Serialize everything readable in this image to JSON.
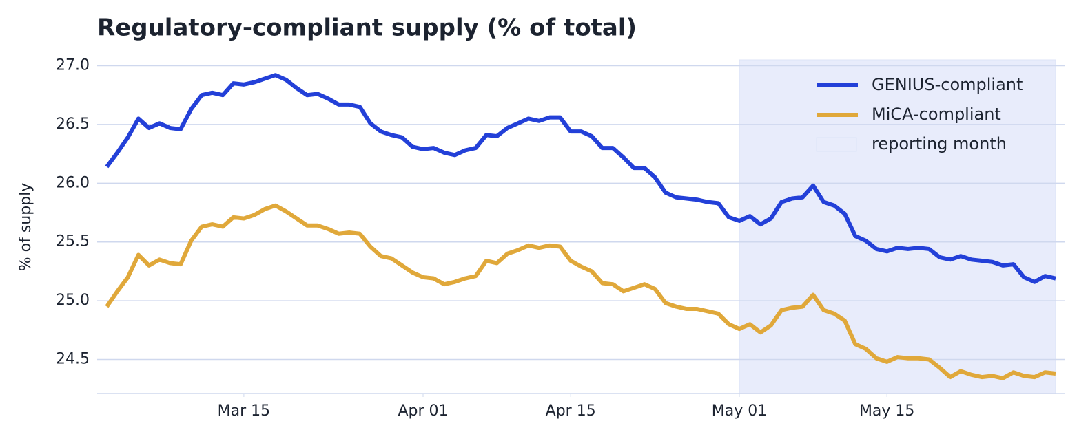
{
  "chart_data": {
    "type": "line",
    "title": "Regulatory-compliant supply (% of total)",
    "y_label": "% of supply",
    "x": [
      "Mar 02",
      "Mar 03",
      "Mar 04",
      "Mar 05",
      "Mar 06",
      "Mar 07",
      "Mar 08",
      "Mar 09",
      "Mar 10",
      "Mar 11",
      "Mar 12",
      "Mar 13",
      "Mar 14",
      "Mar 15",
      "Mar 16",
      "Mar 17",
      "Mar 18",
      "Mar 19",
      "Mar 20",
      "Mar 21",
      "Mar 22",
      "Mar 23",
      "Mar 24",
      "Mar 25",
      "Mar 26",
      "Mar 27",
      "Mar 28",
      "Mar 29",
      "Mar 30",
      "Mar 31",
      "Apr 01",
      "Apr 02",
      "Apr 03",
      "Apr 04",
      "Apr 05",
      "Apr 06",
      "Apr 07",
      "Apr 08",
      "Apr 09",
      "Apr 10",
      "Apr 11",
      "Apr 12",
      "Apr 13",
      "Apr 14",
      "Apr 15",
      "Apr 16",
      "Apr 17",
      "Apr 18",
      "Apr 19",
      "Apr 20",
      "Apr 21",
      "Apr 22",
      "Apr 23",
      "Apr 24",
      "Apr 25",
      "Apr 26",
      "Apr 27",
      "Apr 28",
      "Apr 29",
      "Apr 30",
      "May 01",
      "May 02",
      "May 03",
      "May 04",
      "May 05",
      "May 06",
      "May 07",
      "May 08",
      "May 09",
      "May 10",
      "May 11",
      "May 12",
      "May 13",
      "May 14",
      "May 15",
      "May 16",
      "May 17",
      "May 18",
      "May 19",
      "May 20",
      "May 21",
      "May 22",
      "May 23",
      "May 24",
      "May 25",
      "May 26",
      "May 27",
      "May 28",
      "May 29",
      "May 30",
      "May 31"
    ],
    "series": [
      {
        "name": "GENIUS-compliant",
        "color": "#2340d8",
        "values": [
          26.14,
          26.26,
          26.39,
          26.55,
          26.47,
          26.51,
          26.47,
          26.46,
          26.63,
          26.75,
          26.77,
          26.75,
          26.85,
          26.84,
          26.86,
          26.89,
          26.92,
          26.88,
          26.81,
          26.75,
          26.76,
          26.72,
          26.67,
          26.67,
          26.65,
          26.51,
          26.44,
          26.41,
          26.39,
          26.31,
          26.29,
          26.3,
          26.26,
          26.24,
          26.28,
          26.3,
          26.41,
          26.4,
          26.47,
          26.51,
          26.55,
          26.53,
          26.56,
          26.56,
          26.44,
          26.44,
          26.4,
          26.3,
          26.3,
          26.22,
          26.13,
          26.13,
          26.05,
          25.92,
          25.88,
          25.87,
          25.86,
          25.84,
          25.83,
          25.71,
          25.68,
          25.72,
          25.65,
          25.7,
          25.84,
          25.87,
          25.88,
          25.98,
          25.84,
          25.81,
          25.74,
          25.55,
          25.51,
          25.44,
          25.42,
          25.45,
          25.44,
          25.45,
          25.44,
          25.37,
          25.35,
          25.38,
          25.35,
          25.34,
          25.33,
          25.3,
          25.31,
          25.2,
          25.16,
          25.21,
          25.19
        ]
      },
      {
        "name": "MiCA-compliant",
        "color": "#e0a83a",
        "values": [
          24.95,
          25.08,
          25.2,
          25.39,
          25.3,
          25.35,
          25.32,
          25.31,
          25.51,
          25.63,
          25.65,
          25.63,
          25.71,
          25.7,
          25.73,
          25.78,
          25.81,
          25.76,
          25.7,
          25.64,
          25.64,
          25.61,
          25.57,
          25.58,
          25.57,
          25.46,
          25.38,
          25.36,
          25.3,
          25.24,
          25.2,
          25.19,
          25.14,
          25.16,
          25.19,
          25.21,
          25.34,
          25.32,
          25.4,
          25.43,
          25.47,
          25.45,
          25.47,
          25.46,
          25.34,
          25.29,
          25.25,
          25.15,
          25.14,
          25.08,
          25.11,
          25.14,
          25.1,
          24.98,
          24.95,
          24.93,
          24.93,
          24.91,
          24.89,
          24.8,
          24.76,
          24.8,
          24.73,
          24.79,
          24.92,
          24.94,
          24.95,
          25.05,
          24.92,
          24.89,
          24.83,
          24.63,
          24.59,
          24.51,
          24.48,
          24.52,
          24.51,
          24.51,
          24.5,
          24.43,
          24.35,
          24.4,
          24.37,
          24.35,
          24.36,
          24.34,
          24.39,
          24.36,
          24.35,
          24.39,
          24.38
        ]
      }
    ],
    "highlight": {
      "name": "reporting month",
      "start": "May 01",
      "end": "May 31",
      "color": "#e8ecfb"
    },
    "xticks": [
      "Mar 15",
      "Apr 01",
      "Apr 15",
      "May 01",
      "May 15"
    ],
    "xlim": [
      "Mar 01",
      "Jun 01"
    ],
    "ylim": [
      24.21,
      27.05
    ],
    "yticks": [
      {
        "value": 24.5,
        "label": "24.5"
      },
      {
        "value": 25,
        "label": "25.0"
      },
      {
        "value": 25.5,
        "label": "25.5"
      },
      {
        "value": 26,
        "label": "26.0"
      },
      {
        "value": 26.5,
        "label": "26.5"
      },
      {
        "value": 27,
        "label": "27.0"
      }
    ],
    "grid": true,
    "legend": "upper right"
  }
}
